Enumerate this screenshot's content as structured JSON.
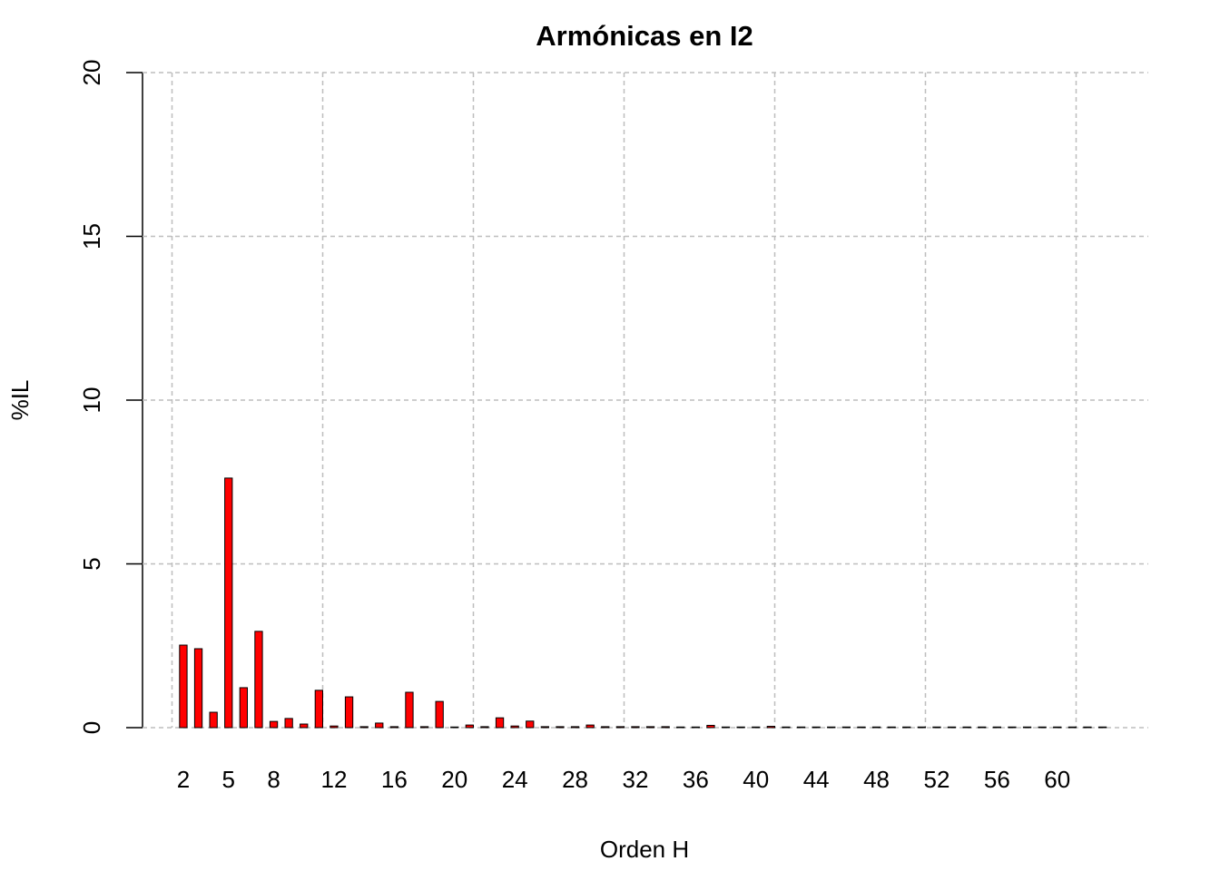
{
  "chart_data": {
    "type": "bar",
    "title": "Armónicas en I2",
    "x_label": "Orden H",
    "y_label": "%IL",
    "categories": [
      "2",
      null,
      null,
      "5",
      null,
      null,
      "8",
      null,
      null,
      null,
      "12",
      null,
      null,
      null,
      "16",
      null,
      null,
      null,
      "20",
      null,
      null,
      null,
      "24",
      null,
      null,
      null,
      "28",
      null,
      null,
      null,
      "32",
      null,
      null,
      null,
      "36",
      null,
      null,
      null,
      "40",
      null,
      null,
      null,
      "44",
      null,
      null,
      null,
      "48",
      null,
      null,
      null,
      "52",
      null,
      null,
      null,
      "56",
      null,
      null,
      null,
      "60",
      null,
      null,
      null
    ],
    "values": [
      2.52,
      2.41,
      0.47,
      7.62,
      1.22,
      2.94,
      0.19,
      0.28,
      0.11,
      1.14,
      0.05,
      0.94,
      0.03,
      0.14,
      0.03,
      1.08,
      0.03,
      0.8,
      0.02,
      0.08,
      0.03,
      0.3,
      0.05,
      0.2,
      0.03,
      0.03,
      0.03,
      0.08,
      0.03,
      0.03,
      0.03,
      0.03,
      0.03,
      0.02,
      0.02,
      0.07,
      0.02,
      0.02,
      0.02,
      0.04,
      0.02,
      0.02,
      0.02,
      0.02,
      0.02,
      0.02,
      0.02,
      0.02,
      0.02,
      0.02,
      0.02,
      0.02,
      0.02,
      0.02,
      0.02,
      0.02,
      0.02,
      0.02,
      0.02,
      0.02,
      0.02,
      0.02
    ],
    "color": "#ff0000",
    "ylim": [
      0,
      20
    ],
    "yticks": [
      0,
      5,
      10,
      15,
      20
    ],
    "grid": true
  }
}
